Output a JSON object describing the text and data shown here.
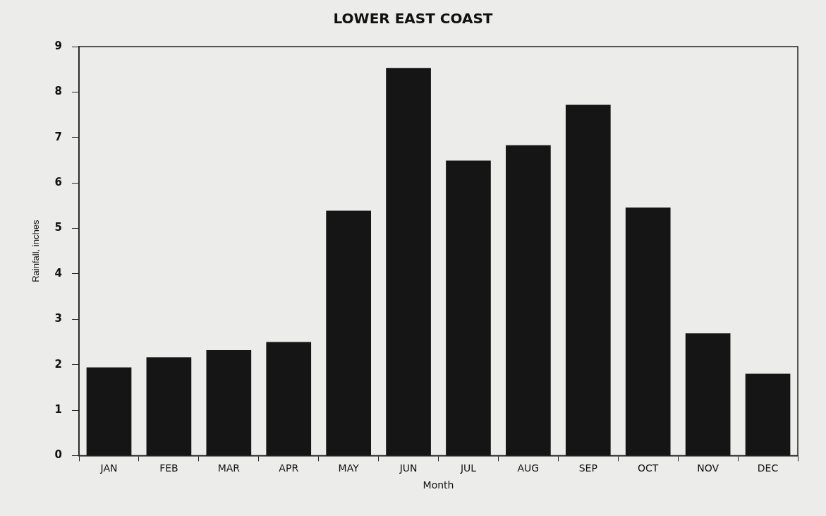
{
  "chart_data": {
    "type": "bar",
    "title": "LOWER EAST COAST",
    "xlabel": "Month",
    "ylabel": "Rainfall, inches",
    "categories": [
      "JAN",
      "FEB",
      "MAR",
      "APR",
      "MAY",
      "JUN",
      "JUL",
      "AUG",
      "SEP",
      "OCT",
      "NOV",
      "DEC"
    ],
    "values": [
      1.94,
      2.16,
      2.32,
      2.5,
      5.39,
      8.53,
      6.49,
      6.83,
      7.72,
      5.46,
      2.69,
      1.8
    ],
    "color": "#151515",
    "ylim": [
      0,
      9
    ],
    "yticks": [
      0,
      1,
      2,
      3,
      4,
      5,
      6,
      7,
      8,
      9
    ],
    "grid": false,
    "legend": false
  }
}
